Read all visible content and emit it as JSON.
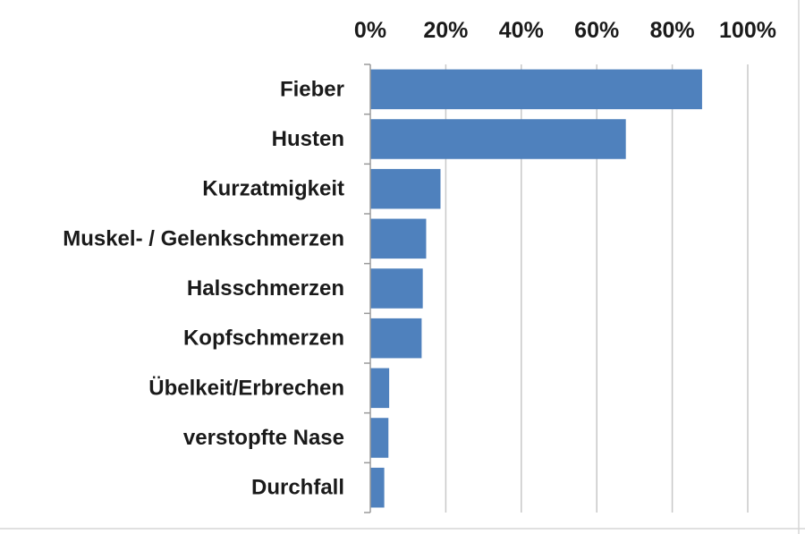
{
  "chart_data": {
    "type": "bar",
    "orientation": "horizontal",
    "categories": [
      "Fieber",
      "Husten",
      "Kurzatmigkeit",
      "Muskel- / Gelenkschmerzen",
      "Halsschmerzen",
      "Kopfschmerzen",
      "Übelkeit/Erbrechen",
      "verstopfte Nase",
      "Durchfall"
    ],
    "values": [
      87.9,
      67.7,
      18.6,
      14.8,
      13.9,
      13.6,
      5.0,
      4.8,
      3.7
    ],
    "value_unit": "%",
    "xlim": [
      0,
      100
    ],
    "x_ticks": [
      0,
      20,
      40,
      60,
      80,
      100
    ],
    "x_tick_labels": [
      "0%",
      "20%",
      "40%",
      "60%",
      "80%",
      "100%"
    ],
    "x_axis_position": "top",
    "grid": true,
    "legend": "none",
    "title": "",
    "xlabel": "",
    "ylabel": "",
    "colors": {
      "bar": "#4f81bd",
      "grid": "#c8c8c8",
      "axis": "#9a9a9a",
      "text": "#1a1a1a",
      "background": "#ffffff"
    }
  }
}
